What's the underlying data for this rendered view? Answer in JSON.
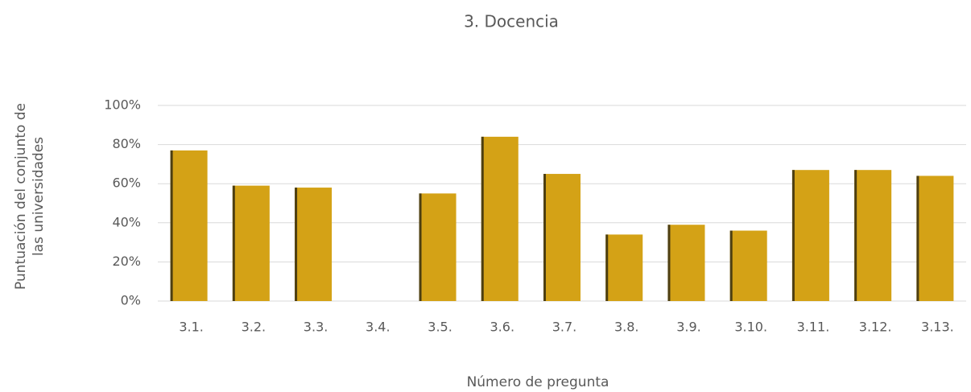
{
  "chart_data": {
    "type": "bar",
    "title": "3. Docencia",
    "x_label": "Número de pregunta",
    "y_label": "Puntuación del conjunto de las universidades",
    "categories": [
      "3.1.",
      "3.2.",
      "3.3.",
      "3.4.",
      "3.5.",
      "3.6.",
      "3.7.",
      "3.8.",
      "3.9.",
      "3.10.",
      "3.11.",
      "3.12.",
      "3.13."
    ],
    "values": [
      77,
      59,
      58,
      0,
      55,
      84,
      65,
      34,
      39,
      36,
      67,
      67,
      64
    ],
    "color": "#d4a216",
    "ylim": [
      0,
      100
    ],
    "yticks": [
      {
        "value": 0,
        "label": "0%"
      },
      {
        "value": 20,
        "label": "20%"
      },
      {
        "value": 40,
        "label": "40%"
      },
      {
        "value": 60,
        "label": "60%"
      },
      {
        "value": 80,
        "label": "80%"
      },
      {
        "value": 100,
        "label": "100%"
      }
    ],
    "grid": true
  }
}
